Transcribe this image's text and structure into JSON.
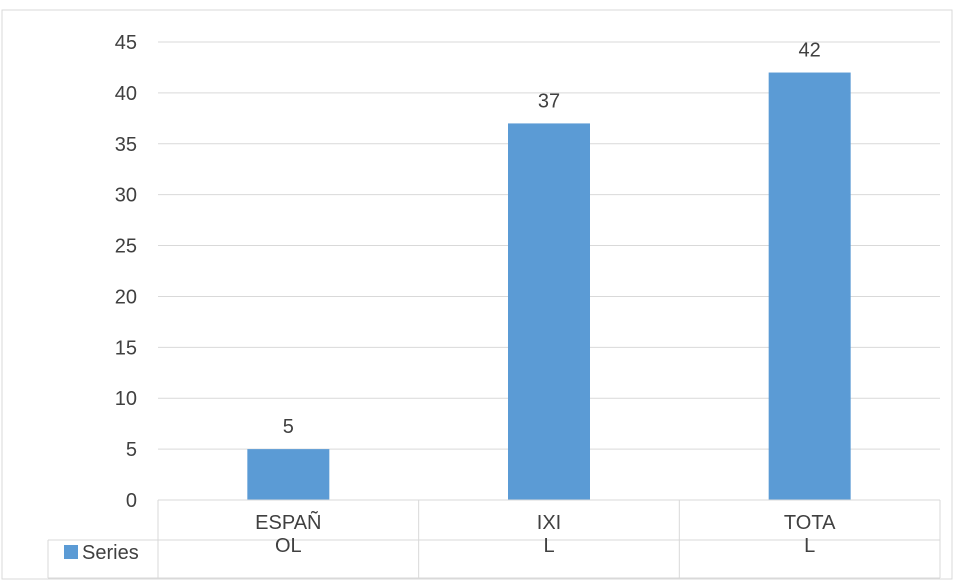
{
  "chart_data": {
    "type": "bar",
    "categories": [
      "ESPAÑOL",
      "IXIL",
      "TOTAL"
    ],
    "category_lines": [
      [
        "ESPAÑ",
        "OL"
      ],
      [
        "IXI",
        "L"
      ],
      [
        "TOTA",
        "L"
      ]
    ],
    "series": [
      {
        "name": "Series",
        "values": [
          5,
          37,
          42
        ],
        "color": "#5b9bd5"
      }
    ],
    "data_labels": [
      "5",
      "37",
      "42"
    ],
    "yticks": [
      "0",
      "5",
      "10",
      "15",
      "20",
      "25",
      "30",
      "35",
      "40",
      "45"
    ],
    "ylim": [
      0,
      45
    ],
    "title": "",
    "xlabel": "",
    "ylabel": "",
    "grid": true,
    "legend": "bottom-left, inside data table",
    "data_table": true
  }
}
